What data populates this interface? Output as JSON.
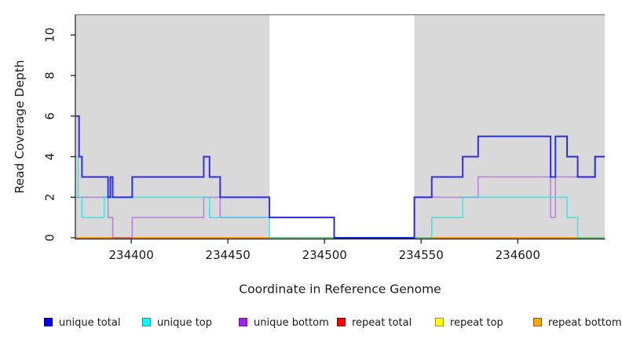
{
  "chart_data": {
    "type": "line",
    "subtype": "step-coverage",
    "title": "",
    "xlabel": "Coordinate in Reference Genome",
    "ylabel": "Read Coverage Depth",
    "x_range": [
      234371.5,
      234645
    ],
    "y_range": [
      0,
      11
    ],
    "x_ticks": [
      234400,
      234450,
      234500,
      234550,
      234600
    ],
    "y_ticks": [
      0,
      2,
      4,
      6,
      8,
      10
    ],
    "grid": false,
    "legend_position": "bottom",
    "panel_background": "#ffffff",
    "shade_color": "#d9d9d9",
    "top_rule_color": "#8f8f8f",
    "axis_color": "#111111",
    "text_color": "#1a1a1a",
    "shaded_regions": [
      {
        "label": "repeat region left",
        "x0": 234371.5,
        "x1": 234471.5
      },
      {
        "label": "repeat region right",
        "x0": 234546.5,
        "x1": 234645
      }
    ],
    "series": [
      {
        "name": "unique total",
        "legend_color": "#0000ee",
        "legend_border": "#000090",
        "stroke": "rgba(16,16,238,0.85)",
        "stroke_width": 2.0,
        "steps": [
          [
            234371.5,
            6
          ],
          [
            234373,
            4
          ],
          [
            234374.5,
            3
          ],
          [
            234388,
            2
          ],
          [
            234389.2,
            3
          ],
          [
            234390.4,
            2
          ],
          [
            234400.5,
            3
          ],
          [
            234437.5,
            4
          ],
          [
            234440.5,
            3
          ],
          [
            234446,
            2
          ],
          [
            234471.5,
            1
          ],
          [
            234505,
            0
          ],
          [
            234546.5,
            2
          ],
          [
            234555.5,
            3
          ],
          [
            234571.5,
            4
          ],
          [
            234579.5,
            5
          ],
          [
            234617,
            3
          ],
          [
            234619.5,
            5
          ],
          [
            234625.5,
            4
          ],
          [
            234631,
            3
          ],
          [
            234640,
            4
          ]
        ]
      },
      {
        "name": "unique top",
        "legend_color": "#00ffff",
        "legend_border": "#009999",
        "stroke": "rgba(0,235,235,0.72)",
        "stroke_width": 1.6,
        "steps": [
          [
            234371.5,
            4
          ],
          [
            234372.5,
            2
          ],
          [
            234374.5,
            1
          ],
          [
            234386,
            2
          ],
          [
            234440.5,
            1
          ],
          [
            234471.5,
            0
          ],
          [
            234555.5,
            1
          ],
          [
            234571.5,
            2
          ],
          [
            234625.5,
            1
          ],
          [
            234631,
            0
          ]
        ]
      },
      {
        "name": "unique bottom",
        "legend_color": "#a020f0",
        "legend_border": "#6a14a0",
        "stroke": "rgba(158,44,238,0.5)",
        "stroke_width": 1.6,
        "steps": [
          [
            234371.5,
            2
          ],
          [
            234388,
            1
          ],
          [
            234390.4,
            0
          ],
          [
            234400.5,
            1
          ],
          [
            234437.5,
            2
          ],
          [
            234446,
            1
          ],
          [
            234505,
            0
          ],
          [
            234546.5,
            2
          ],
          [
            234579.5,
            3
          ],
          [
            234617,
            1
          ],
          [
            234619.5,
            3
          ],
          [
            234640,
            4
          ]
        ]
      },
      {
        "name": "repeat total",
        "legend_color": "#ff0000",
        "legend_border": "#800000",
        "stroke": "rgba(238,0,0,0.9)",
        "stroke_width": 1.6,
        "steps": [
          [
            234371.5,
            0
          ]
        ]
      },
      {
        "name": "repeat top",
        "legend_color": "#ffff00",
        "legend_border": "#9a9a00",
        "stroke": "rgba(255,255,0,0.9)",
        "stroke_width": 1.6,
        "steps": [
          [
            234371.5,
            0
          ]
        ]
      },
      {
        "name": "repeat bottom",
        "legend_color": "#ffa500",
        "legend_border": "#8b5a00",
        "stroke": "rgba(255,148,0,0.95)",
        "stroke_width": 1.8,
        "steps": [
          [
            234371.5,
            0
          ]
        ]
      }
    ]
  }
}
